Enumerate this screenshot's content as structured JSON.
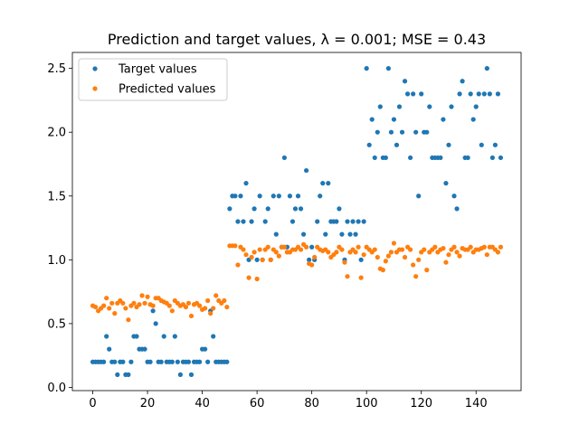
{
  "chart_data": {
    "type": "scatter",
    "title": "Prediction and target values, λ = 0.001; MSE = 0.43",
    "xlabel": "",
    "ylabel": "",
    "xlim": [
      -7.45,
      156.45
    ],
    "ylim": [
      -0.025,
      2.625
    ],
    "xticks": [
      0,
      20,
      40,
      60,
      80,
      100,
      120,
      140
    ],
    "yticks": [
      0.0,
      0.5,
      1.0,
      1.5,
      2.0,
      2.5
    ],
    "xtick_labels": [
      "0",
      "20",
      "40",
      "60",
      "80",
      "100",
      "120",
      "140"
    ],
    "ytick_labels": [
      "0.0",
      "0.5",
      "1.0",
      "1.5",
      "2.0",
      "2.5"
    ],
    "grid": false,
    "legend_position": "top-left",
    "series": [
      {
        "name": "Target values",
        "color": "#1f77b4",
        "x": [
          0,
          1,
          2,
          3,
          4,
          5,
          6,
          7,
          8,
          9,
          10,
          11,
          12,
          13,
          14,
          15,
          16,
          17,
          18,
          19,
          20,
          21,
          22,
          23,
          24,
          25,
          26,
          27,
          28,
          29,
          30,
          31,
          32,
          33,
          34,
          35,
          36,
          37,
          38,
          39,
          40,
          41,
          42,
          43,
          44,
          45,
          46,
          47,
          48,
          49,
          50,
          51,
          52,
          53,
          54,
          55,
          56,
          57,
          58,
          59,
          60,
          61,
          62,
          63,
          64,
          65,
          66,
          67,
          68,
          69,
          70,
          71,
          72,
          73,
          74,
          75,
          76,
          77,
          78,
          79,
          80,
          81,
          82,
          83,
          84,
          85,
          86,
          87,
          88,
          89,
          90,
          91,
          92,
          93,
          94,
          95,
          96,
          97,
          98,
          99,
          100,
          101,
          102,
          103,
          104,
          105,
          106,
          107,
          108,
          109,
          110,
          111,
          112,
          113,
          114,
          115,
          116,
          117,
          118,
          119,
          120,
          121,
          122,
          123,
          124,
          125,
          126,
          127,
          128,
          129,
          130,
          131,
          132,
          133,
          134,
          135,
          136,
          137,
          138,
          139,
          140,
          141,
          142,
          143,
          144,
          145,
          146,
          147,
          148,
          149
        ],
        "y": [
          0.2,
          0.2,
          0.2,
          0.2,
          0.2,
          0.4,
          0.3,
          0.2,
          0.2,
          0.1,
          0.2,
          0.2,
          0.1,
          0.1,
          0.2,
          0.4,
          0.4,
          0.3,
          0.3,
          0.3,
          0.2,
          0.2,
          0.6,
          0.5,
          0.2,
          0.2,
          0.4,
          0.2,
          0.2,
          0.2,
          0.4,
          0.2,
          0.1,
          0.2,
          0.2,
          0.2,
          0.1,
          0.2,
          0.2,
          0.2,
          0.3,
          0.3,
          0.2,
          0.6,
          0.4,
          0.2,
          0.2,
          0.2,
          0.2,
          0.2,
          1.4,
          1.5,
          1.5,
          1.3,
          1.5,
          1.3,
          1.6,
          1.0,
          1.3,
          1.4,
          1.0,
          1.5,
          1.0,
          1.3,
          1.4,
          1.0,
          1.5,
          1.2,
          1.5,
          1.1,
          1.8,
          1.1,
          1.5,
          1.3,
          1.4,
          1.5,
          1.4,
          1.2,
          1.7,
          1.0,
          1.1,
          1.0,
          1.3,
          1.5,
          1.6,
          1.2,
          1.6,
          1.3,
          1.3,
          1.3,
          1.4,
          1.2,
          1.0,
          1.3,
          1.2,
          1.3,
          1.2,
          1.3,
          1.0,
          1.3,
          2.5,
          1.9,
          2.1,
          1.8,
          2.0,
          2.2,
          1.8,
          1.8,
          2.5,
          2.0,
          2.1,
          1.9,
          2.2,
          2.0,
          2.4,
          2.3,
          1.8,
          2.3,
          2.0,
          1.5,
          2.3,
          2.0,
          2.0,
          2.2,
          1.8,
          1.8,
          1.8,
          1.8,
          2.1,
          1.6,
          1.9,
          2.2,
          1.5,
          1.4,
          2.3,
          2.4,
          1.8,
          1.8,
          2.3,
          2.1,
          2.2,
          2.3,
          1.9,
          2.3,
          2.5,
          2.3,
          1.8,
          1.9,
          2.3,
          1.8
        ]
      },
      {
        "name": "Predicted values",
        "color": "#ff7f0e",
        "x": [
          0,
          1,
          2,
          3,
          4,
          5,
          6,
          7,
          8,
          9,
          10,
          11,
          12,
          13,
          14,
          15,
          16,
          17,
          18,
          19,
          20,
          21,
          22,
          23,
          24,
          25,
          26,
          27,
          28,
          29,
          30,
          31,
          32,
          33,
          34,
          35,
          36,
          37,
          38,
          39,
          40,
          41,
          42,
          43,
          44,
          45,
          46,
          47,
          48,
          49,
          50,
          51,
          52,
          53,
          54,
          55,
          56,
          57,
          58,
          59,
          60,
          61,
          62,
          63,
          64,
          65,
          66,
          67,
          68,
          69,
          70,
          71,
          72,
          73,
          74,
          75,
          76,
          77,
          78,
          79,
          80,
          81,
          82,
          83,
          84,
          85,
          86,
          87,
          88,
          89,
          90,
          91,
          92,
          93,
          94,
          95,
          96,
          97,
          98,
          99,
          100,
          101,
          102,
          103,
          104,
          105,
          106,
          107,
          108,
          109,
          110,
          111,
          112,
          113,
          114,
          115,
          116,
          117,
          118,
          119,
          120,
          121,
          122,
          123,
          124,
          125,
          126,
          127,
          128,
          129,
          130,
          131,
          132,
          133,
          134,
          135,
          136,
          137,
          138,
          139,
          140,
          141,
          142,
          143,
          144,
          145,
          146,
          147,
          148,
          149
        ],
        "y": [
          0.64,
          0.63,
          0.6,
          0.62,
          0.64,
          0.7,
          0.62,
          0.66,
          0.58,
          0.66,
          0.68,
          0.66,
          0.62,
          0.53,
          0.64,
          0.66,
          0.63,
          0.65,
          0.72,
          0.66,
          0.71,
          0.65,
          0.64,
          0.7,
          0.7,
          0.68,
          0.67,
          0.66,
          0.64,
          0.6,
          0.68,
          0.66,
          0.64,
          0.65,
          0.63,
          0.66,
          0.56,
          0.65,
          0.66,
          0.64,
          0.61,
          0.62,
          0.68,
          0.58,
          0.62,
          0.72,
          0.68,
          0.66,
          0.68,
          0.63,
          1.11,
          1.11,
          1.11,
          0.96,
          1.1,
          1.08,
          1.04,
          0.86,
          1.02,
          1.06,
          0.85,
          1.08,
          1.0,
          1.08,
          1.1,
          1.0,
          1.08,
          1.06,
          1.03,
          1.1,
          1.1,
          1.06,
          1.06,
          1.08,
          1.08,
          1.1,
          1.08,
          1.12,
          1.1,
          0.97,
          0.96,
          1.02,
          1.1,
          1.08,
          1.07,
          1.08,
          1.06,
          1.02,
          1.04,
          1.06,
          1.1,
          1.08,
          0.98,
          0.87,
          1.06,
          1.08,
          1.06,
          1.1,
          0.86,
          1.04,
          1.1,
          1.08,
          1.06,
          1.08,
          1.02,
          0.93,
          0.92,
          0.99,
          1.03,
          1.06,
          1.13,
          1.06,
          1.08,
          1.08,
          1.02,
          1.1,
          1.08,
          0.96,
          0.87,
          1.0,
          1.06,
          1.08,
          0.92,
          1.06,
          1.08,
          1.1,
          1.06,
          1.08,
          1.09,
          0.98,
          1.04,
          1.08,
          1.1,
          1.06,
          1.03,
          1.09,
          1.08,
          1.08,
          1.1,
          1.06,
          1.08,
          1.08,
          1.09,
          1.1,
          1.04,
          1.1,
          1.1,
          1.08,
          1.06,
          1.1
        ]
      }
    ]
  }
}
